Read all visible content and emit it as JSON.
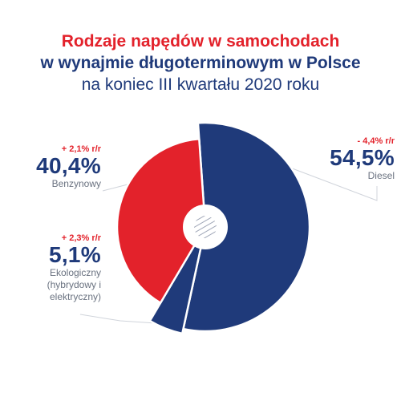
{
  "header": {
    "line1": "Rodzaje napędów w samochodach",
    "line2": "w wynajmie długoterminowym w Polsce",
    "line3": "na koniec III kwartału 2020 roku"
  },
  "chart_data": {
    "type": "pie",
    "title": "Rodzaje napędów w samochodach w wynajmie długoterminowym w Polsce na koniec III kwartału 2020 roku",
    "slices": [
      {
        "label": "Diesel",
        "value": 54.5,
        "value_label": "54,5%",
        "change": "- 4,4% r/r",
        "color": "#1f3a7a"
      },
      {
        "label": "Ekologiczny (hybrydowy i elektryczny)",
        "value": 5.1,
        "value_label": "5,1%",
        "change": "+ 2,3% r/r",
        "color": "#1f3a7a"
      },
      {
        "label": "Benzynowy",
        "value": 40.4,
        "value_label": "40,4%",
        "change": "+ 2,1% r/r",
        "color": "#e3222b"
      }
    ],
    "category_lines": {
      "ekologiczny": [
        "Ekologiczny",
        "(hybrydowy i",
        "elektryczny)"
      ]
    }
  },
  "colors": {
    "red": "#e3222b",
    "navy": "#1f3a7a",
    "grey_text": "#6a7280",
    "leader": "#d0d4db"
  }
}
